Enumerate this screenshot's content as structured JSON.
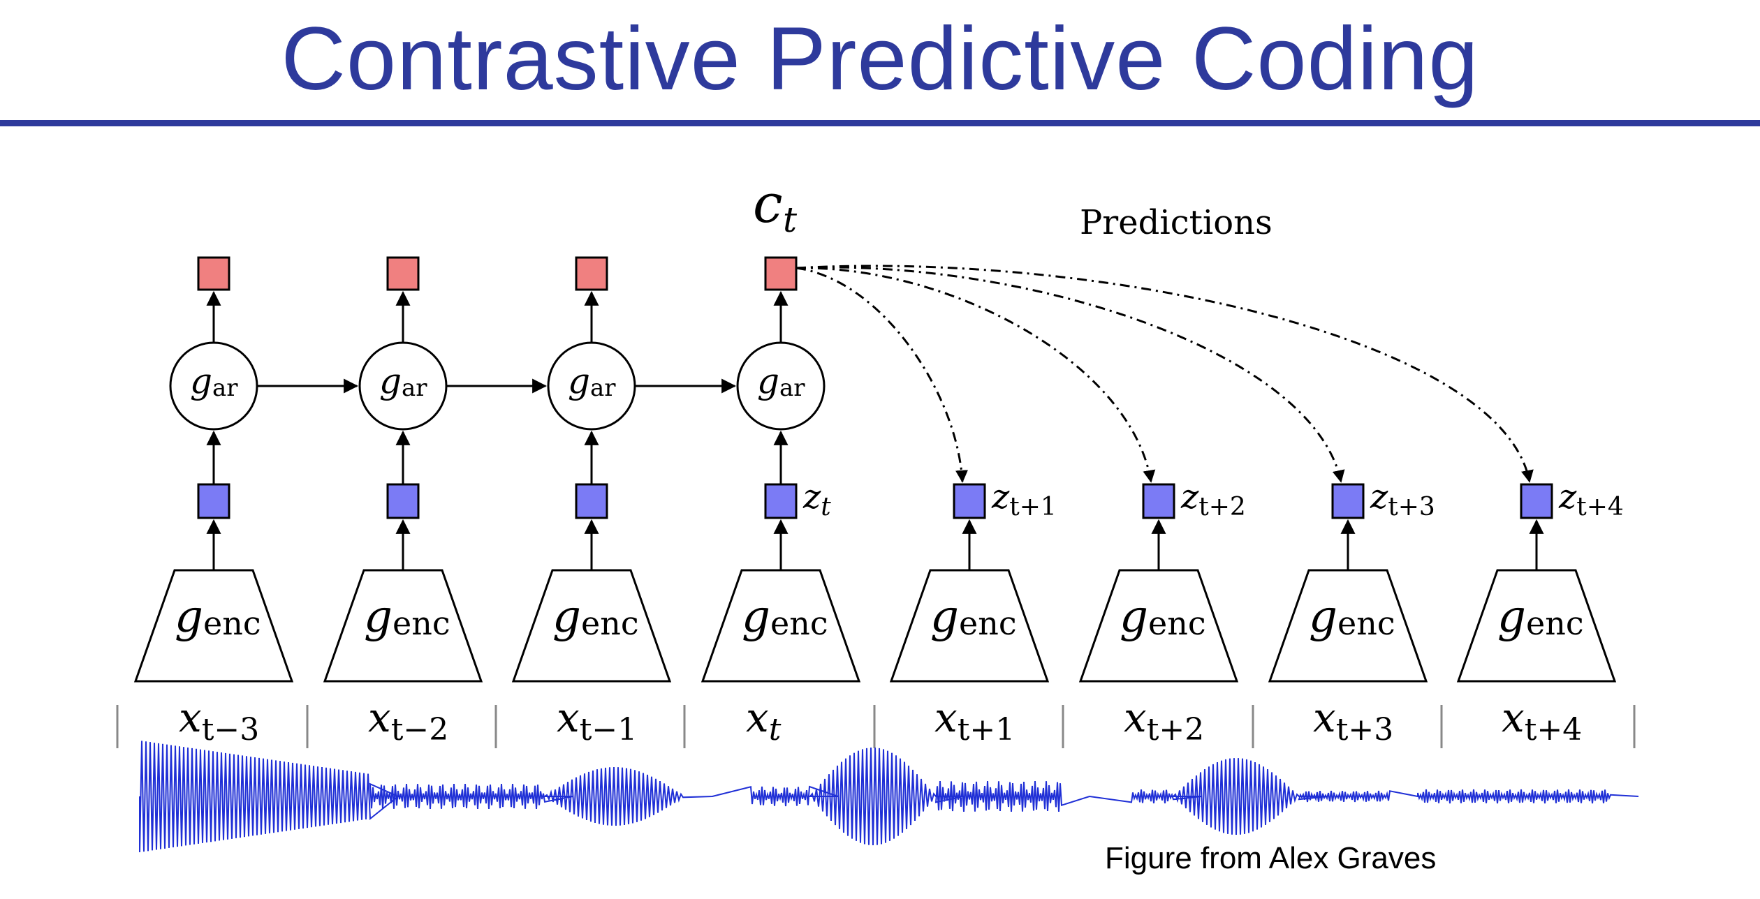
{
  "title": "Contrastive Predictive Coding",
  "caption": "Figure from Alex Graves",
  "context_label": {
    "main": "c",
    "sub": "t"
  },
  "predictions_label": "Predictions",
  "ar_label": {
    "main": "g",
    "sub": "ar"
  },
  "enc_label": {
    "main": "g",
    "sub": "enc"
  },
  "input_labels": [
    {
      "main": "x",
      "sub": "t−3"
    },
    {
      "main": "x",
      "sub": "t−2"
    },
    {
      "main": "x",
      "sub": "t−1"
    },
    {
      "main": "x",
      "sub": "t"
    },
    {
      "main": "x",
      "sub": "t+1"
    },
    {
      "main": "x",
      "sub": "t+2"
    },
    {
      "main": "x",
      "sub": "t+3"
    },
    {
      "main": "x",
      "sub": "t+4"
    }
  ],
  "latent_labels": [
    {
      "main": "",
      "sub": ""
    },
    {
      "main": "",
      "sub": ""
    },
    {
      "main": "",
      "sub": ""
    },
    {
      "main": "z",
      "sub": "t"
    },
    {
      "main": "z",
      "sub": "t+1"
    },
    {
      "main": "z",
      "sub": "t+2"
    },
    {
      "main": "z",
      "sub": "t+3"
    },
    {
      "main": "z",
      "sub": "t+4"
    }
  ],
  "colors": {
    "title": "#2e3a9c",
    "context_box": "#f08080",
    "latent_box": "#7b7bf5",
    "waveform": "#1f2fd6"
  }
}
